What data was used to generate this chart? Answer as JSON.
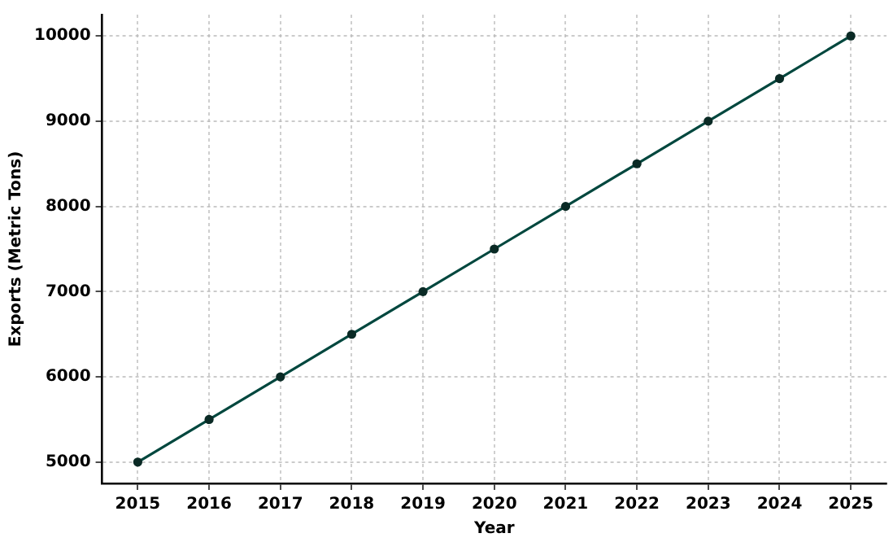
{
  "chart_data": {
    "type": "line",
    "xlabel": "Year",
    "ylabel": "Exports (Metric Tons)",
    "x": [
      2015,
      2016,
      2017,
      2018,
      2019,
      2020,
      2021,
      2022,
      2023,
      2024,
      2025
    ],
    "series": [
      {
        "color": "#00473e",
        "values": [
          5000,
          5500,
          6000,
          6500,
          7000,
          7500,
          8000,
          8500,
          9000,
          9500,
          10000
        ]
      }
    ],
    "xlim": [
      2014.5,
      2025.5
    ],
    "xticks": [
      2015,
      2016,
      2017,
      2018,
      2019,
      2020,
      2021,
      2022,
      2023,
      2024,
      2025
    ],
    "ylim": [
      4750,
      10250
    ],
    "yticks": [
      5000,
      6000,
      7000,
      8000,
      9000,
      10000
    ],
    "grid": true,
    "marker": "circle",
    "line_style": "solid",
    "legend": false
  }
}
